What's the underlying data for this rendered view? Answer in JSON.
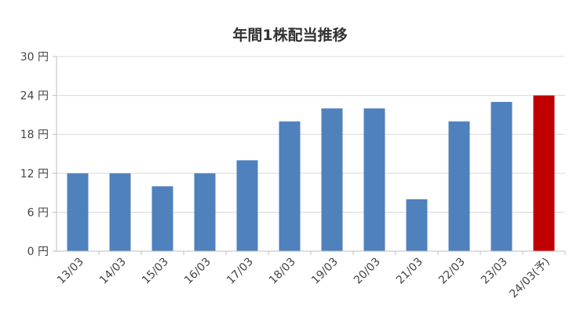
{
  "chart_data": {
    "type": "bar",
    "title": "年間1株配当推移",
    "categories": [
      "13/03",
      "14/03",
      "15/03",
      "16/03",
      "17/03",
      "18/03",
      "19/03",
      "20/03",
      "21/03",
      "22/03",
      "23/03",
      "24/03(予)"
    ],
    "values": [
      12,
      12,
      10,
      12,
      14,
      20,
      22,
      22,
      8,
      20,
      23,
      24
    ],
    "y_ticks": [
      "0 円",
      "6 円",
      "12 円",
      "18 円",
      "24 円",
      "30 円"
    ],
    "ylim": [
      0,
      30
    ],
    "grid": true,
    "colors": {
      "bar": "#4f81bd",
      "highlight_bar": "#c00000",
      "grid": "#d9d9d9",
      "axis": "#bfbfbf"
    },
    "highlight_index": 11
  }
}
